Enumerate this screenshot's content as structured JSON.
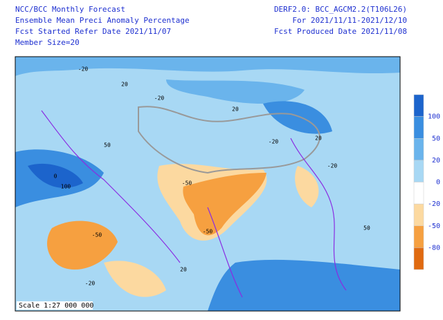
{
  "header": {
    "left": [
      "NCC/BCC Monthly Forecast",
      "Ensemble Mean Preci Anomaly Percentage",
      "Fcst Started Refer Date 2021/11/07",
      "Member Size=20"
    ],
    "right": [
      "DERF2.0: BCC_AGCM2.2(T106L26)",
      "For 2021/11/11-2021/12/10",
      "Fcst Produced Date 2021/11/08"
    ]
  },
  "map": {
    "scale": "Scale 1:27 000 000",
    "contour_labels": [
      "-20",
      "20",
      "-20",
      "20",
      "-20",
      "20",
      "-50",
      "50",
      "-50",
      "100",
      "50",
      "-50",
      "-20",
      "20",
      "0",
      "-20"
    ]
  },
  "legend": {
    "ticks": [
      100,
      50,
      20,
      0,
      -20,
      -50,
      -80
    ],
    "colors": [
      "#1c64cc",
      "#3a8ee0",
      "#6ab4ec",
      "#a8d8f4",
      "#ffffff",
      "#fcd9a0",
      "#f6a040",
      "#e06a10"
    ]
  }
}
